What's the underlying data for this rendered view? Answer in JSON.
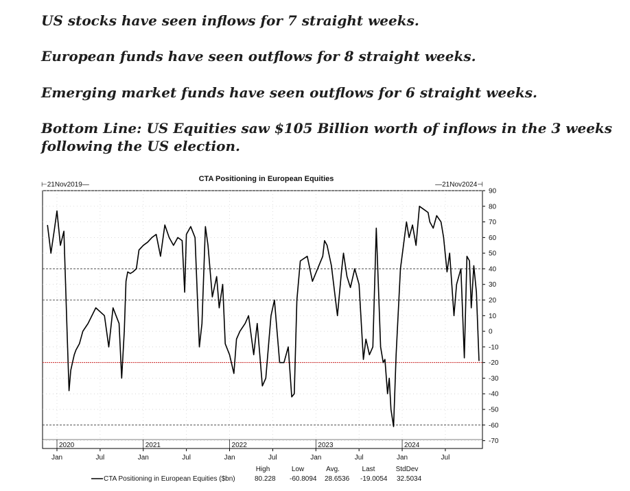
{
  "headlines": {
    "line1": "US stocks have seen inflows for 7 straight weeks.",
    "line2": "European funds have seen outflows for 8 straight weeks.",
    "line3": "Emerging market funds have seen outflows for 6 straight weeks.",
    "line4a": "Bottom Line: US Equities saw $105 Billion worth of inflows in the 3 weeks",
    "line4b": "following the US election."
  },
  "chart_data": {
    "type": "line",
    "title": "CTA Positioning in European Equities",
    "start_label": "21Nov2019",
    "end_label": "21Nov2024",
    "ylim": [
      -75,
      90
    ],
    "y_ticks": [
      90,
      80,
      70,
      60,
      50,
      40,
      30,
      20,
      10,
      0,
      -10,
      -20,
      -30,
      -40,
      -50,
      -60,
      -70
    ],
    "reference_lines": [
      40,
      20,
      -60
    ],
    "threshold_line": -20,
    "threshold_color": "#cc2222",
    "year_labels": [
      "2020",
      "2021",
      "2022",
      "2023",
      "2024"
    ],
    "month_labels": [
      "Jan",
      "Jul",
      "Jan",
      "Jul",
      "Jan",
      "Jul",
      "Jan",
      "Jul",
      "Jan",
      "Jul"
    ],
    "series": [
      {
        "name": "CTA Positioning in European Equities ($bn)",
        "color": "#000000",
        "x": [
          2019.89,
          2019.93,
          2019.97,
          2020.0,
          2020.04,
          2020.08,
          2020.12,
          2020.14,
          2020.16,
          2020.18,
          2020.2,
          2020.22,
          2020.26,
          2020.3,
          2020.36,
          2020.45,
          2020.55,
          2020.6,
          2020.65,
          2020.72,
          2020.75,
          2020.78,
          2020.8,
          2020.82,
          2020.85,
          2020.88,
          2020.92,
          2020.95,
          2021.0,
          2021.05,
          2021.1,
          2021.15,
          2021.2,
          2021.25,
          2021.3,
          2021.35,
          2021.4,
          2021.45,
          2021.48,
          2021.5,
          2021.55,
          2021.6,
          2021.65,
          2021.68,
          2021.72,
          2021.75,
          2021.8,
          2021.85,
          2021.88,
          2021.92,
          2021.95,
          2022.0,
          2022.05,
          2022.08,
          2022.12,
          2022.18,
          2022.22,
          2022.28,
          2022.32,
          2022.38,
          2022.42,
          2022.48,
          2022.52,
          2022.58,
          2022.63,
          2022.68,
          2022.72,
          2022.75,
          2022.78,
          2022.82,
          2022.9,
          2022.96,
          2023.02,
          2023.08,
          2023.1,
          2023.13,
          2023.18,
          2023.25,
          2023.3,
          2023.32,
          2023.36,
          2023.4,
          2023.45,
          2023.5,
          2023.55,
          2023.58,
          2023.62,
          2023.66,
          2023.7,
          2023.75,
          2023.78,
          2023.8,
          2023.83,
          2023.85,
          2023.87,
          2023.9,
          2023.93,
          2023.98,
          2024.05,
          2024.08,
          2024.12,
          2024.16,
          2024.2,
          2024.25,
          2024.3,
          2024.32,
          2024.36,
          2024.4,
          2024.45,
          2024.48,
          2024.52,
          2024.55,
          2024.6,
          2024.63,
          2024.68,
          2024.72,
          2024.75,
          2024.78,
          2024.8,
          2024.83,
          2024.86,
          2024.89
        ],
        "y": [
          68,
          50,
          65,
          77,
          55,
          64,
          -5,
          -38,
          -25,
          -20,
          -15,
          -12,
          -8,
          0,
          5,
          15,
          10,
          -10,
          15,
          5,
          -30,
          0,
          32,
          38,
          37,
          38,
          40,
          52,
          55,
          57,
          60,
          62,
          48,
          68,
          60,
          55,
          60,
          58,
          25,
          62,
          67,
          60,
          -10,
          5,
          67,
          55,
          22,
          35,
          15,
          30,
          -8,
          -15,
          -27,
          -5,
          0,
          5,
          10,
          -15,
          5,
          -35,
          -30,
          10,
          20,
          -20,
          -20,
          -10,
          -42,
          -40,
          20,
          45,
          48,
          32,
          40,
          48,
          58,
          55,
          42,
          10,
          40,
          50,
          35,
          28,
          40,
          30,
          -18,
          -5,
          -15,
          -10,
          66,
          -10,
          -20,
          -18,
          -40,
          -30,
          -50,
          -61,
          -15,
          40,
          70,
          60,
          68,
          55,
          80,
          78,
          76,
          70,
          66,
          74,
          70,
          60,
          38,
          50,
          10,
          30,
          40,
          -17,
          48,
          45,
          15,
          42,
          25,
          -19
        ]
      }
    ],
    "stats": {
      "headers": [
        "High",
        "Low",
        "Avg.",
        "Last",
        "StdDev"
      ],
      "values": [
        "80.228",
        "-60.8094",
        "28.6536",
        "-19.0054",
        "32.5034"
      ]
    }
  }
}
